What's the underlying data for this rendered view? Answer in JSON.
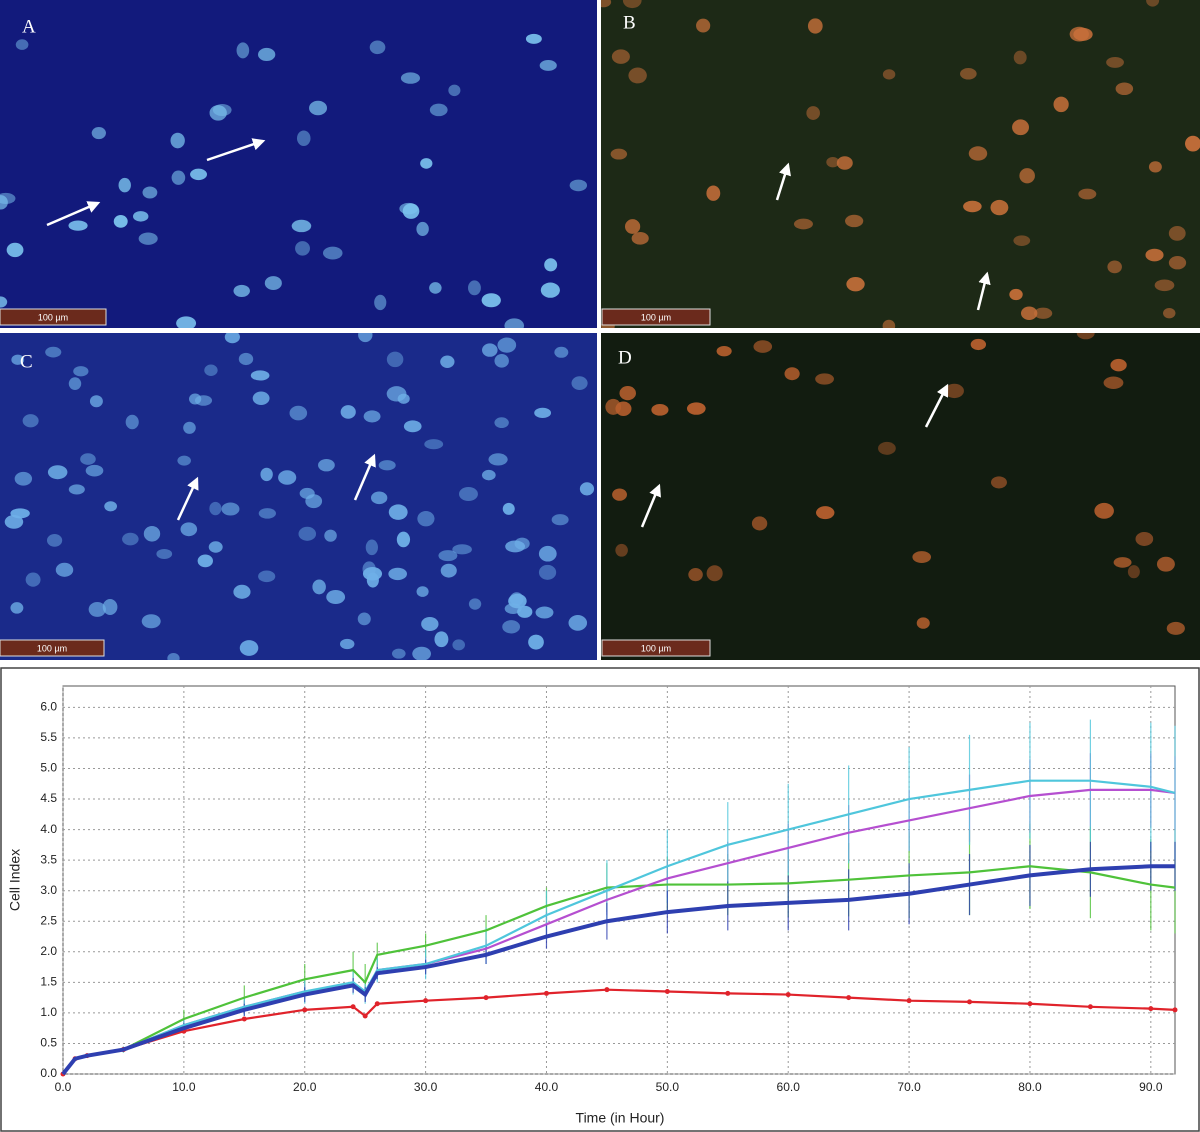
{
  "panels": [
    {
      "label": "A",
      "scale_bar": "100 µm"
    },
    {
      "label": "B",
      "scale_bar": "100 µm"
    },
    {
      "label": "C",
      "scale_bar": "100 µm"
    },
    {
      "label": "D",
      "scale_bar": "100 µm"
    }
  ],
  "chart_data": {
    "type": "line",
    "x_label": "Time (in Hour)",
    "y_label": "Cell Index",
    "grid": true,
    "x": [
      0,
      1,
      2,
      5,
      10,
      15,
      20,
      24,
      25,
      26,
      30,
      35,
      40,
      45,
      50,
      55,
      60,
      65,
      70,
      75,
      80,
      85,
      90,
      92
    ],
    "xlim": [
      0,
      92
    ],
    "ylim": [
      0,
      6.35
    ],
    "xticks": [
      {
        "value": 0,
        "label": "0.0"
      },
      {
        "value": 10,
        "label": "10.0"
      },
      {
        "value": 20,
        "label": "20.0"
      },
      {
        "value": 30,
        "label": "30.0"
      },
      {
        "value": 40,
        "label": "40.0"
      },
      {
        "value": 50,
        "label": "50.0"
      },
      {
        "value": 60,
        "label": "60.0"
      },
      {
        "value": 70,
        "label": "70.0"
      },
      {
        "value": 80,
        "label": "80.0"
      },
      {
        "value": 90,
        "label": "90.0"
      }
    ],
    "yticks": [
      {
        "value": 0,
        "label": "0.0"
      },
      0.5,
      {
        "value": 1,
        "label": "1.0"
      },
      1.5,
      {
        "value": 2,
        "label": "2.0"
      },
      2.5,
      {
        "value": 3,
        "label": "3.0"
      },
      3.5,
      {
        "value": 4,
        "label": "4.0"
      },
      4.5,
      {
        "value": 5,
        "label": "5.0"
      },
      5.5,
      {
        "value": 6,
        "label": "6.0"
      }
    ],
    "series": [
      {
        "color": "#e0232b",
        "values": [
          0,
          0.25,
          0.3,
          0.4,
          0.7,
          0.9,
          1.05,
          1.1,
          0.95,
          1.15,
          1.2,
          1.25,
          1.32,
          1.38,
          1.35,
          1.32,
          1.3,
          1.25,
          1.2,
          1.18,
          1.15,
          1.1,
          1.07,
          1.05
        ]
      },
      {
        "color": "#4fc23a",
        "values": [
          0,
          0.25,
          0.3,
          0.4,
          0.9,
          1.25,
          1.55,
          1.7,
          1.5,
          1.95,
          2.1,
          2.35,
          2.75,
          3.05,
          3.1,
          3.1,
          3.12,
          3.18,
          3.25,
          3.3,
          3.4,
          3.3,
          3.1,
          3.05
        ],
        "errors": [
          0,
          0.02,
          0.03,
          0.05,
          0.15,
          0.2,
          0.25,
          0.3,
          0.3,
          0.2,
          0.2,
          0.25,
          0.3,
          0.4,
          0.45,
          0.5,
          0.55,
          0.6,
          0.7,
          0.7,
          0.7,
          0.75,
          0.75,
          0.75
        ]
      },
      {
        "color": "#b54fd0",
        "values": [
          0,
          0.25,
          0.3,
          0.4,
          0.8,
          1.1,
          1.35,
          1.45,
          1.3,
          1.7,
          1.8,
          2.05,
          2.45,
          2.85,
          3.2,
          3.45,
          3.7,
          3.95,
          4.15,
          4.35,
          4.55,
          4.65,
          4.65,
          4.6
        ],
        "errors": [
          0,
          0.02,
          0.02,
          0.04,
          0.08,
          0.1,
          0.12,
          0.12,
          0.12,
          0.1,
          0.12,
          0.15,
          0.2,
          0.25,
          0.3,
          0.35,
          0.4,
          0.45,
          0.5,
          0.55,
          0.6,
          0.6,
          0.6,
          0.6
        ]
      },
      {
        "color": "#4fc6dc",
        "values": [
          0,
          0.25,
          0.3,
          0.4,
          0.8,
          1.1,
          1.35,
          1.5,
          1.35,
          1.7,
          1.8,
          2.1,
          2.6,
          3.0,
          3.4,
          3.75,
          4.0,
          4.25,
          4.5,
          4.65,
          4.8,
          4.8,
          4.7,
          4.6
        ],
        "errors": [
          0,
          0.02,
          0.03,
          0.05,
          0.1,
          0.15,
          0.2,
          0.2,
          0.2,
          0.2,
          0.25,
          0.3,
          0.4,
          0.5,
          0.6,
          0.7,
          0.75,
          0.8,
          0.85,
          0.9,
          0.95,
          1.0,
          1.05,
          1.1
        ]
      },
      {
        "color": "#2e3fb0",
        "values": [
          0,
          0.25,
          0.3,
          0.4,
          0.75,
          1.05,
          1.3,
          1.45,
          1.3,
          1.65,
          1.75,
          1.95,
          2.25,
          2.5,
          2.65,
          2.75,
          2.8,
          2.85,
          2.95,
          3.1,
          3.25,
          3.35,
          3.4,
          3.4
        ],
        "errors": [
          0,
          0.02,
          0.02,
          0.04,
          0.08,
          0.1,
          0.12,
          0.12,
          0.12,
          0.1,
          0.12,
          0.15,
          0.2,
          0.3,
          0.35,
          0.4,
          0.45,
          0.5,
          0.5,
          0.5,
          0.5,
          0.45,
          0.4,
          0.4
        ]
      }
    ]
  }
}
